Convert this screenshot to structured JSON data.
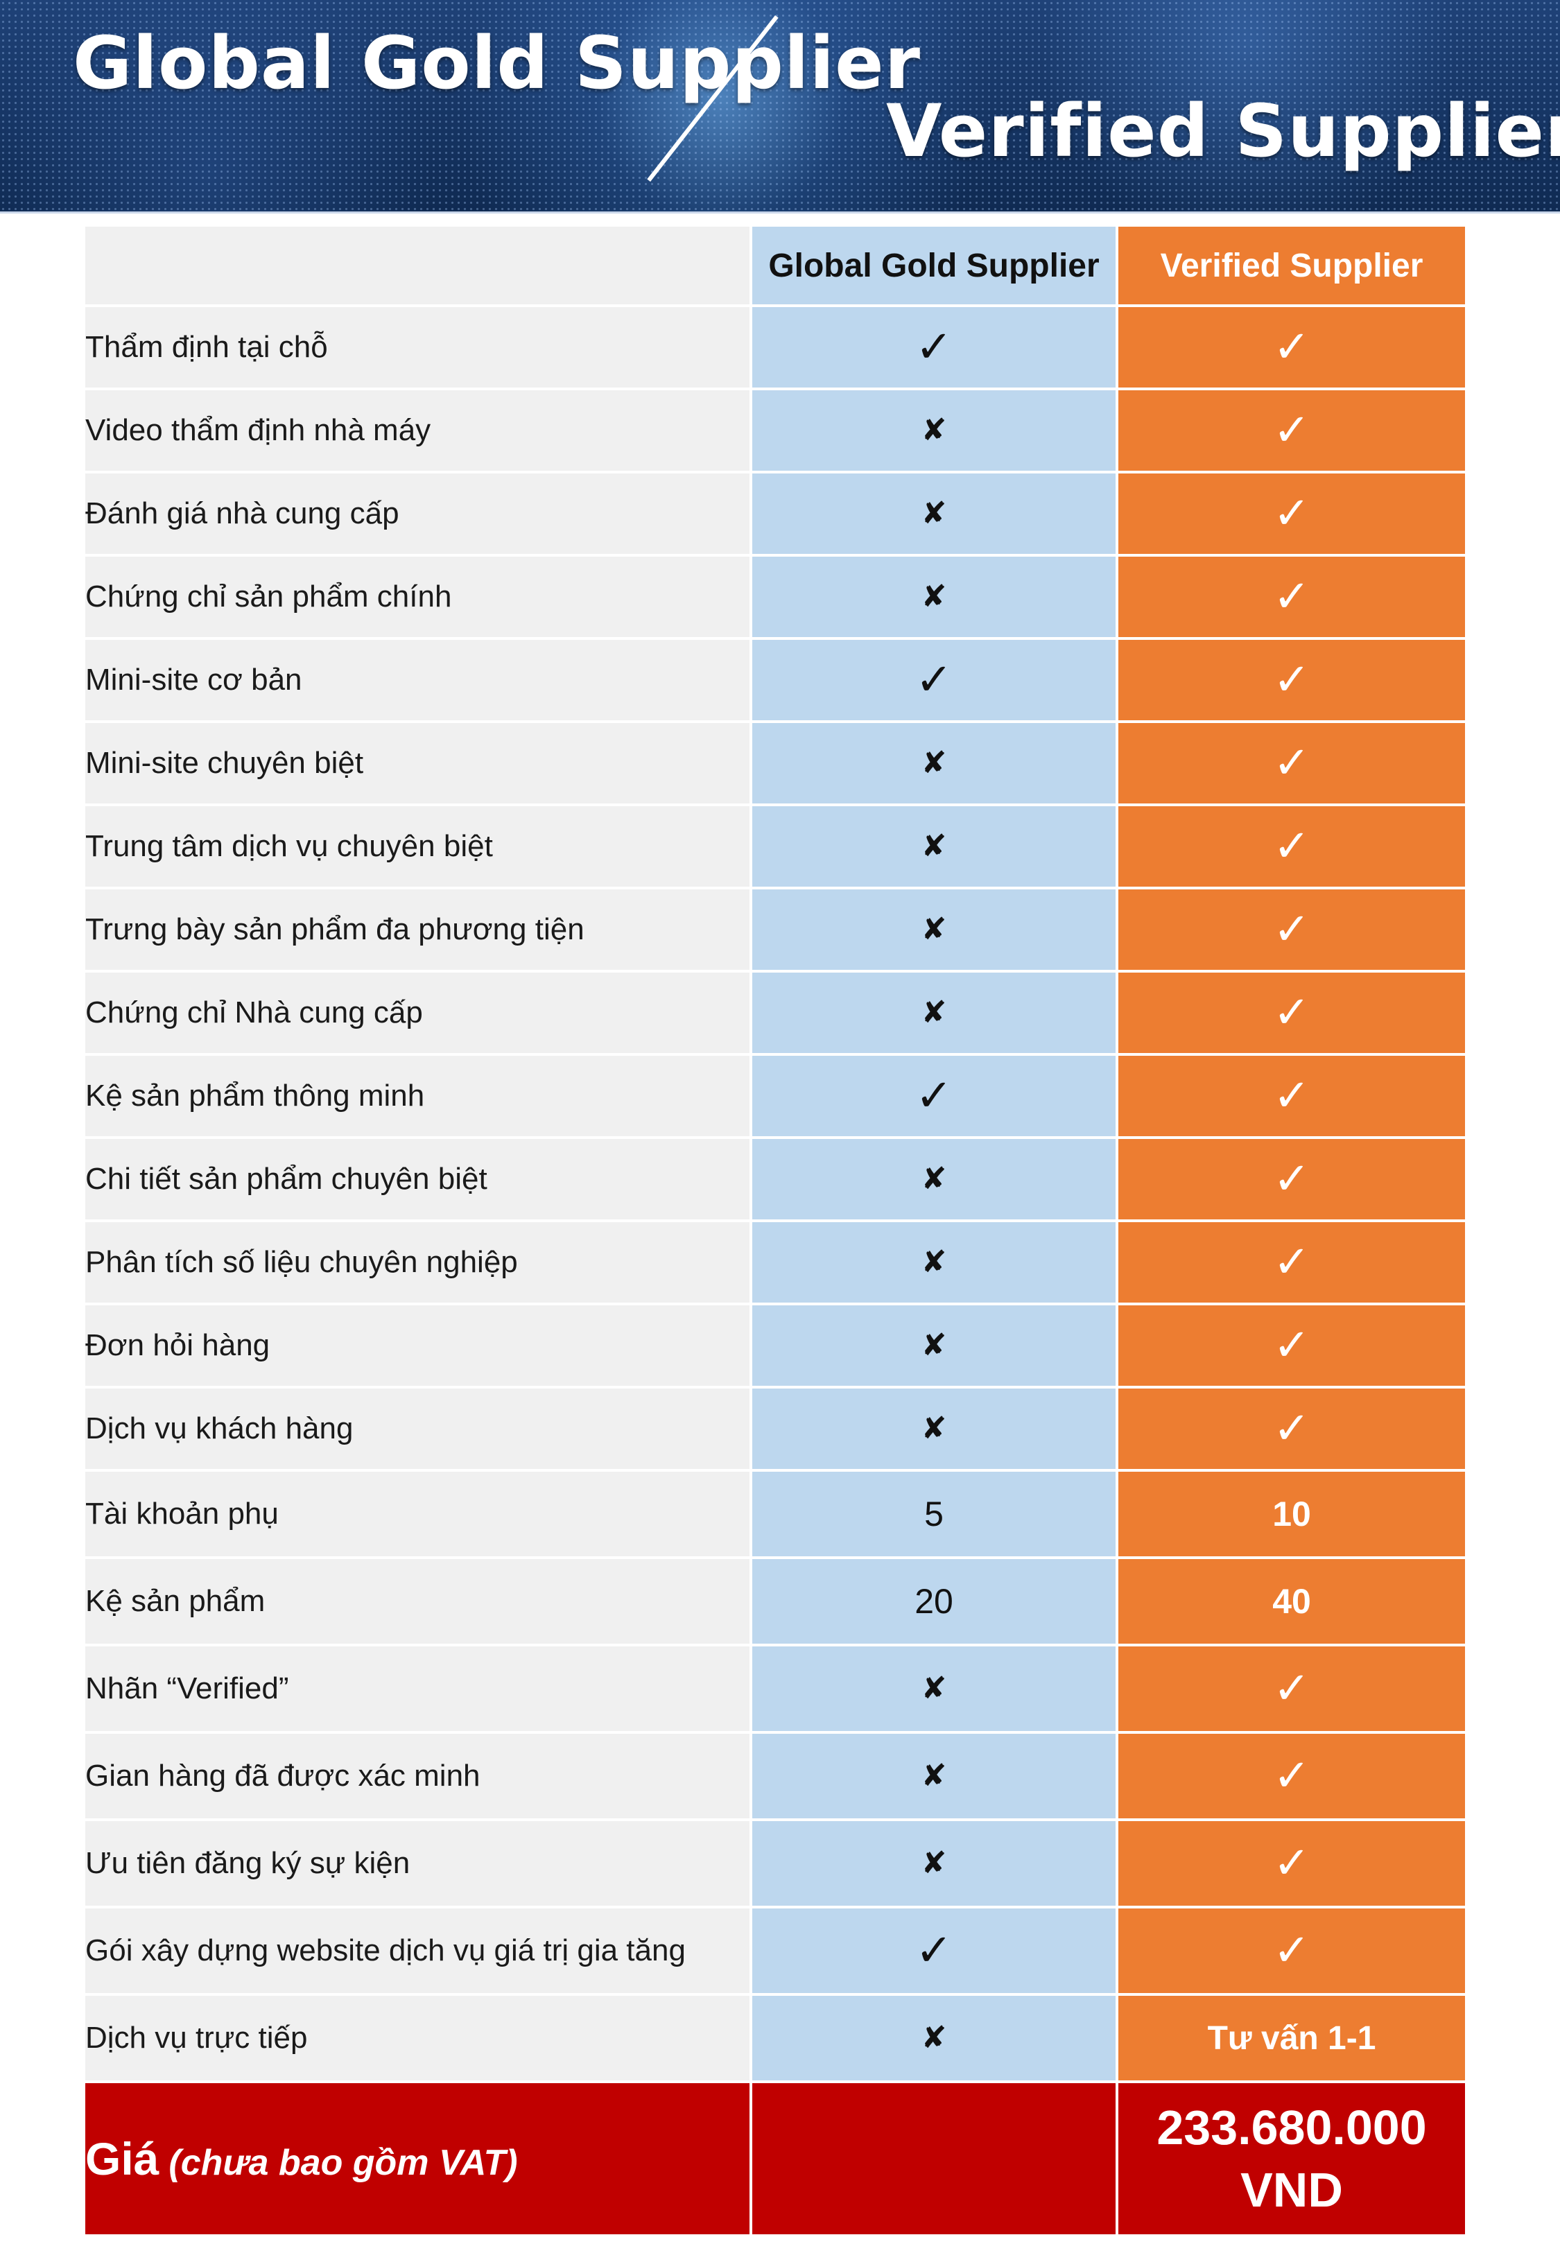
{
  "header": {
    "title_left": "Global Gold Supplier",
    "title_right": "Verified Supplier",
    "divider_icon": "slash"
  },
  "table": {
    "columns": [
      "",
      "Global Gold Supplier",
      "Verified Supplier"
    ],
    "rows": [
      {
        "feature": "Thẩm định tại chỗ",
        "gold": "✓",
        "verified": "✓"
      },
      {
        "feature": "Video thẩm định nhà máy",
        "gold": "✘",
        "verified": "✓"
      },
      {
        "feature": "Đánh giá nhà cung cấp",
        "gold": "✘",
        "verified": "✓"
      },
      {
        "feature": "Chứng chỉ sản phẩm chính",
        "gold": "✘",
        "verified": "✓"
      },
      {
        "feature": "Mini-site cơ bản",
        "gold": "✓",
        "verified": "✓"
      },
      {
        "feature": "Mini-site chuyên biệt",
        "gold": "✘",
        "verified": "✓"
      },
      {
        "feature": "Trung tâm dịch vụ chuyên biệt",
        "gold": "✘",
        "verified": "✓"
      },
      {
        "feature": "Trưng bày sản phẩm đa phương tiện",
        "gold": "✘",
        "verified": "✓"
      },
      {
        "feature": "Chứng chỉ Nhà cung cấp",
        "gold": "✘",
        "verified": "✓"
      },
      {
        "feature": "Kệ sản phẩm thông minh",
        "gold": "✓",
        "verified": "✓"
      },
      {
        "feature": "Chi tiết sản phẩm chuyên biệt",
        "gold": "✘",
        "verified": "✓"
      },
      {
        "feature": "Phân tích số liệu chuyên nghiệp",
        "gold": "✘",
        "verified": "✓"
      },
      {
        "feature": "Đơn hỏi hàng",
        "gold": "✘",
        "verified": "✓"
      },
      {
        "feature": "Dịch vụ khách hàng",
        "gold": "✘",
        "verified": "✓"
      },
      {
        "feature": "Tài khoản phụ",
        "gold": "5",
        "verified": "10"
      },
      {
        "feature": "Kệ sản phẩm",
        "gold": "20",
        "verified": "40"
      },
      {
        "feature": "Nhãn “Verified”",
        "gold": "✘",
        "verified": "✓"
      },
      {
        "feature": "Gian hàng đã được xác minh",
        "gold": "✘",
        "verified": "✓"
      },
      {
        "feature": "Ưu tiên đăng ký sự kiện",
        "gold": "✘",
        "verified": "✓"
      },
      {
        "feature": "Gói xây dựng website dịch vụ giá trị gia tăng",
        "gold": "✓",
        "verified": "✓"
      },
      {
        "feature": "Dịch vụ trực tiếp",
        "gold": "✘",
        "verified": "Tư vấn 1-1"
      }
    ],
    "price": {
      "label": "Giá",
      "note": "(chưa bao gồm VAT)",
      "gold": "",
      "verified_amount": "233.680.000",
      "verified_currency": "VND"
    }
  },
  "colors": {
    "gold_column": "#bdd7ee",
    "verified_column": "#ed7d31",
    "feature_column": "#f0f0f0",
    "price_row": "#c00000",
    "banner": "#1f4278"
  }
}
